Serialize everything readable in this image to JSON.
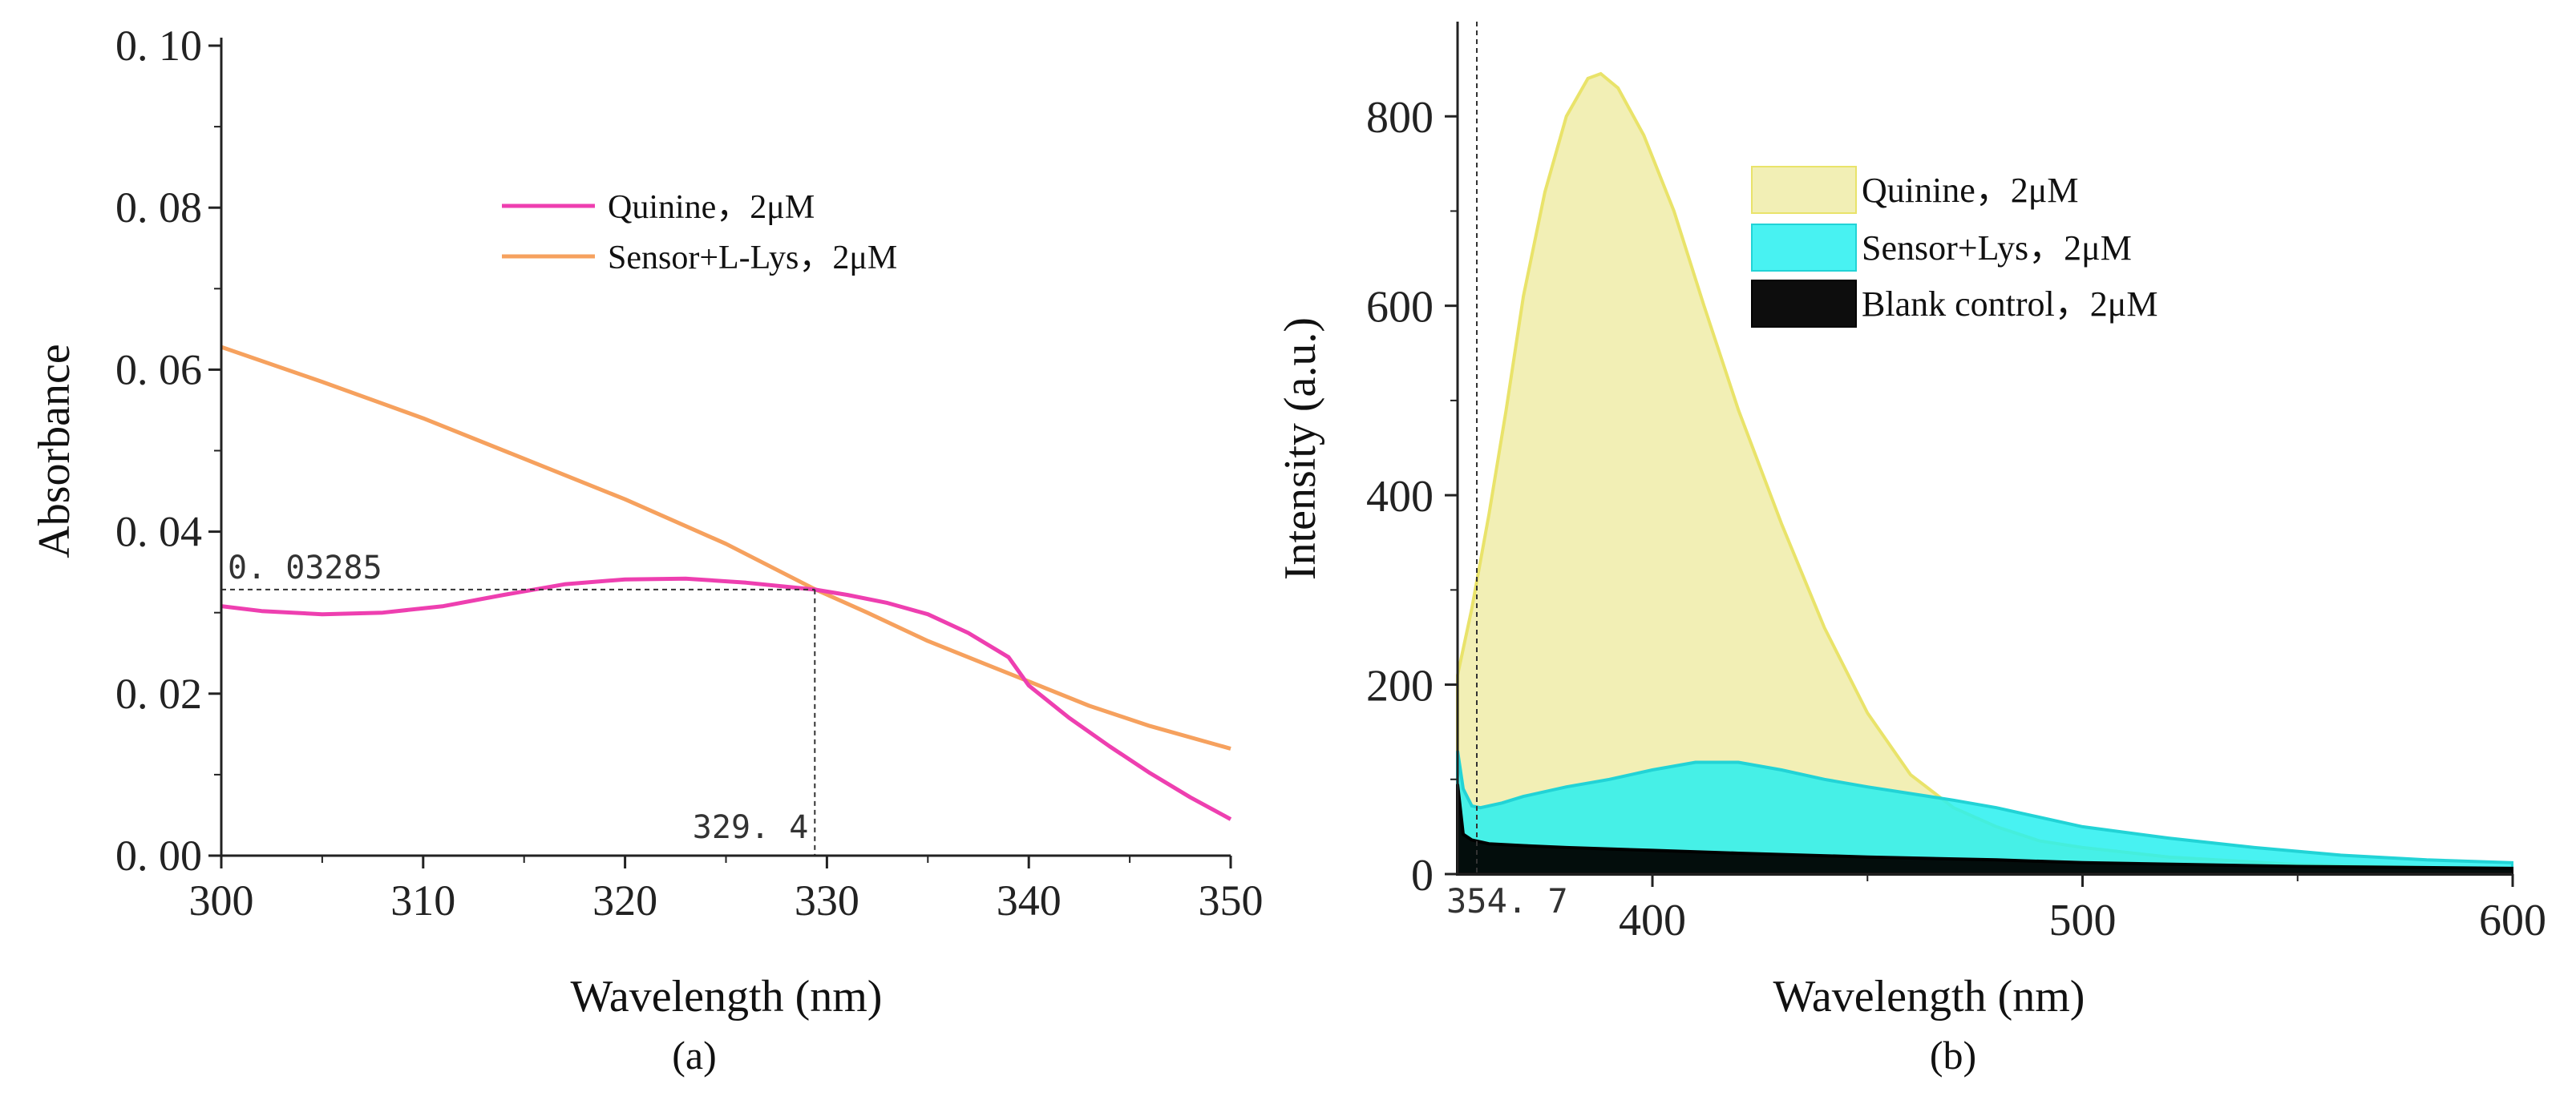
{
  "chart_data": [
    {
      "type": "line",
      "panel_label": "(a)",
      "xlabel": "Wavelength (nm)",
      "ylabel": "Absorbance",
      "xlim": [
        300,
        350
      ],
      "ylim": [
        0.0,
        0.1
      ],
      "xticks": [
        "300",
        "310",
        "320",
        "330",
        "340",
        "350"
      ],
      "yticks": [
        "0. 00",
        "0. 02",
        "0. 04",
        "0. 06",
        "0. 08",
        "0. 10"
      ],
      "legend_position": "top-right",
      "series": [
        {
          "name": "Quinine，2μM",
          "color": "#ee3fb0",
          "x": [
            300,
            302,
            305,
            308,
            311,
            314,
            317,
            320,
            323,
            326,
            329.4,
            331,
            333,
            335,
            337,
            339,
            340,
            342,
            344,
            346,
            348,
            350
          ],
          "y": [
            0.0308,
            0.0302,
            0.0298,
            0.03,
            0.0308,
            0.0322,
            0.0335,
            0.0341,
            0.0342,
            0.0337,
            0.03285,
            0.0322,
            0.0312,
            0.0298,
            0.0275,
            0.0245,
            0.021,
            0.017,
            0.0135,
            0.0102,
            0.0072,
            0.0045
          ]
        },
        {
          "name": "Sensor+L-Lys，2μM",
          "color": "#f6a15e",
          "x": [
            300,
            305,
            310,
            315,
            320,
            325,
            329.4,
            332,
            335,
            338,
            340,
            343,
            346,
            350
          ],
          "y": [
            0.0628,
            0.0585,
            0.054,
            0.049,
            0.044,
            0.0385,
            0.0329,
            0.03,
            0.0265,
            0.0235,
            0.0215,
            0.0185,
            0.016,
            0.0132
          ]
        }
      ],
      "annotations": [
        {
          "text": "0. 03285",
          "value": 0.03285,
          "axis": "y"
        },
        {
          "text": "329. 4",
          "value": 329.4,
          "axis": "x"
        }
      ]
    },
    {
      "type": "area",
      "panel_label": "(b)",
      "xlabel": "Wavelength (nm)",
      "ylabel": "Intensity (a.u.)",
      "xlim": [
        354.7,
        600
      ],
      "ylim": [
        0,
        900
      ],
      "xticks": [
        "400",
        "500",
        "600"
      ],
      "yticks": [
        "0",
        "200",
        "400",
        "600",
        "800"
      ],
      "legend_position": "top-right",
      "series": [
        {
          "name": "Quinine，2μM",
          "color": "#e9e36a",
          "fill": "rgba(231,226,120,0.55)",
          "x": [
            354.7,
            358,
            362,
            366,
            370,
            375,
            380,
            385,
            388,
            392,
            398,
            405,
            412,
            420,
            430,
            440,
            450,
            460,
            470,
            480,
            490,
            500,
            520,
            550,
            600
          ],
          "y": [
            210,
            280,
            380,
            490,
            610,
            720,
            800,
            840,
            845,
            830,
            780,
            700,
            600,
            490,
            370,
            260,
            170,
            105,
            70,
            50,
            35,
            28,
            18,
            10,
            5
          ]
        },
        {
          "name": "Sensor+Lys，2μM",
          "color": "#22d3d6",
          "fill": "rgba(40,240,240,0.85)",
          "x": [
            354.7,
            356,
            358,
            360,
            365,
            370,
            380,
            390,
            400,
            410,
            420,
            430,
            440,
            450,
            460,
            470,
            480,
            490,
            500,
            520,
            540,
            560,
            580,
            600
          ],
          "y": [
            130,
            90,
            72,
            70,
            75,
            82,
            92,
            100,
            110,
            118,
            118,
            110,
            100,
            92,
            85,
            78,
            70,
            60,
            50,
            38,
            28,
            20,
            15,
            12
          ]
        },
        {
          "name": "Blank control，2μM",
          "color": "#000000",
          "fill": "rgba(0,0,0,0.95)",
          "x": [
            354.7,
            356,
            358,
            362,
            370,
            380,
            400,
            420,
            450,
            480,
            500,
            550,
            600
          ],
          "y": [
            95,
            42,
            36,
            32,
            30,
            28,
            25,
            22,
            18,
            15,
            12,
            8,
            6
          ]
        }
      ],
      "annotations": [
        {
          "text": "354. 7",
          "value": 354.7,
          "axis": "x"
        }
      ]
    }
  ]
}
